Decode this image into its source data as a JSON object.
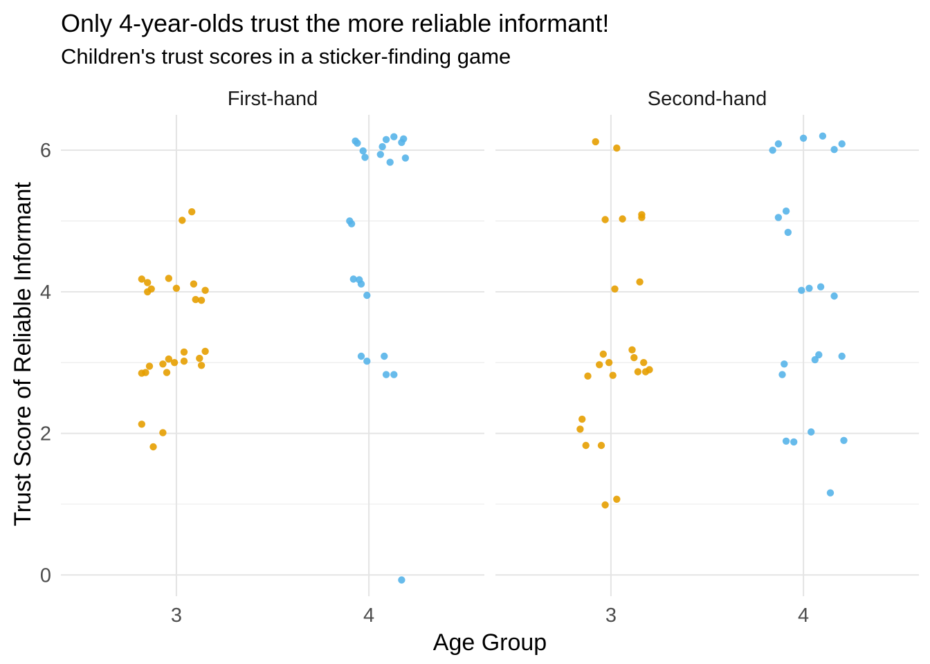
{
  "chart_data": {
    "type": "scatter",
    "title": "Only 4-year-olds trust the more reliable informant!",
    "subtitle": "Children's trust scores in a sticker-finding game",
    "xlabel": "Age Group",
    "ylabel": "Trust Score of Reliable Informant",
    "x_categories": [
      "3",
      "4"
    ],
    "y_ticks": [
      "0",
      "2",
      "4",
      "6"
    ],
    "ylim": [
      -0.3,
      6.5
    ],
    "grid": true,
    "legend": "none",
    "colors": {
      "3": "#E69F00",
      "4": "#56B4E9"
    },
    "facets": [
      {
        "label": "First-hand",
        "series": [
          {
            "group": "3",
            "points": [
              [
                2.82,
                4.18
              ],
              [
                2.85,
                4.13
              ],
              [
                2.85,
                4.0
              ],
              [
                2.87,
                4.04
              ],
              [
                2.96,
                4.19
              ],
              [
                3.0,
                4.05
              ],
              [
                3.09,
                4.11
              ],
              [
                3.1,
                3.89
              ],
              [
                3.13,
                3.88
              ],
              [
                3.15,
                4.02
              ],
              [
                2.82,
                2.85
              ],
              [
                2.84,
                2.86
              ],
              [
                2.86,
                2.95
              ],
              [
                2.93,
                2.98
              ],
              [
                2.95,
                2.86
              ],
              [
                2.96,
                3.05
              ],
              [
                2.99,
                3.0
              ],
              [
                3.04,
                3.15
              ],
              [
                3.04,
                3.02
              ],
              [
                3.12,
                3.06
              ],
              [
                3.13,
                2.96
              ],
              [
                3.15,
                3.16
              ],
              [
                3.03,
                5.01
              ],
              [
                3.08,
                5.13
              ],
              [
                2.82,
                2.13
              ],
              [
                2.93,
                2.01
              ],
              [
                2.88,
                1.81
              ]
            ]
          },
          {
            "group": "4",
            "points": [
              [
                3.93,
                6.13
              ],
              [
                3.94,
                6.1
              ],
              [
                3.97,
                5.99
              ],
              [
                3.98,
                5.9
              ],
              [
                4.06,
                5.94
              ],
              [
                4.07,
                6.05
              ],
              [
                4.09,
                6.15
              ],
              [
                4.11,
                5.83
              ],
              [
                4.13,
                6.19
              ],
              [
                4.17,
                6.11
              ],
              [
                4.18,
                6.16
              ],
              [
                4.19,
                5.89
              ],
              [
                3.9,
                5.0
              ],
              [
                3.91,
                4.96
              ],
              [
                3.92,
                4.18
              ],
              [
                3.95,
                4.17
              ],
              [
                3.96,
                4.11
              ],
              [
                3.99,
                3.95
              ],
              [
                3.96,
                3.09
              ],
              [
                3.99,
                3.02
              ],
              [
                4.08,
                3.09
              ],
              [
                4.09,
                2.83
              ],
              [
                4.13,
                2.83
              ],
              [
                4.17,
                -0.07
              ]
            ]
          }
        ]
      },
      {
        "label": "Second-hand",
        "series": [
          {
            "group": "3",
            "points": [
              [
                2.92,
                6.12
              ],
              [
                3.03,
                6.03
              ],
              [
                2.97,
                5.02
              ],
              [
                3.06,
                5.03
              ],
              [
                3.16,
                5.09
              ],
              [
                3.16,
                5.05
              ],
              [
                3.02,
                4.04
              ],
              [
                3.15,
                4.14
              ],
              [
                2.96,
                3.12
              ],
              [
                2.94,
                2.97
              ],
              [
                2.88,
                2.81
              ],
              [
                2.99,
                3.0
              ],
              [
                3.01,
                2.82
              ],
              [
                3.11,
                3.18
              ],
              [
                3.12,
                3.07
              ],
              [
                3.14,
                2.87
              ],
              [
                3.17,
                3.0
              ],
              [
                3.18,
                2.87
              ],
              [
                3.2,
                2.9
              ],
              [
                2.85,
                2.2
              ],
              [
                2.84,
                2.06
              ],
              [
                2.87,
                1.83
              ],
              [
                2.95,
                1.83
              ],
              [
                2.97,
                0.99
              ],
              [
                3.03,
                1.07
              ]
            ]
          },
          {
            "group": "4",
            "points": [
              [
                3.84,
                6.0
              ],
              [
                3.87,
                6.09
              ],
              [
                4.0,
                6.17
              ],
              [
                4.1,
                6.2
              ],
              [
                4.16,
                6.01
              ],
              [
                4.2,
                6.09
              ],
              [
                3.87,
                5.05
              ],
              [
                3.91,
                5.14
              ],
              [
                3.92,
                4.84
              ],
              [
                3.99,
                4.02
              ],
              [
                4.03,
                4.05
              ],
              [
                4.09,
                4.07
              ],
              [
                4.16,
                3.94
              ],
              [
                3.89,
                2.83
              ],
              [
                3.9,
                2.98
              ],
              [
                4.06,
                3.04
              ],
              [
                4.08,
                3.11
              ],
              [
                4.2,
                3.09
              ],
              [
                3.91,
                1.89
              ],
              [
                3.95,
                1.88
              ],
              [
                4.04,
                2.02
              ],
              [
                4.21,
                1.9
              ],
              [
                4.14,
                1.16
              ]
            ]
          }
        ]
      }
    ]
  }
}
